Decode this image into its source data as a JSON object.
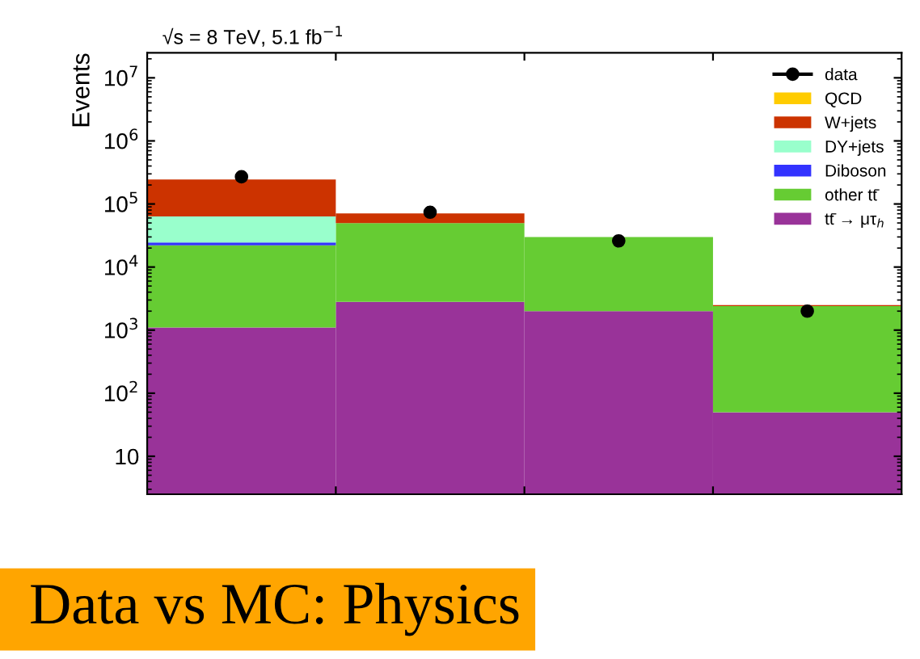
{
  "chart_data": {
    "type": "bar",
    "stacked": true,
    "title": "Data vs MC: Physics",
    "subtitle": "√s = 8 TeV, 5.1 fb$^{−1}$",
    "ylabel": "Events",
    "categories": [
      null,
      null,
      null,
      null
    ],
    "series": [
      {
        "name": "tt̄ → μτ$_{h}$",
        "color": "#993399",
        "values": [
          1100,
          2800,
          2000,
          50
        ]
      },
      {
        "name": "other tt̄",
        "color": "#66cc33",
        "values": [
          21000,
          47000,
          28000,
          2350
        ]
      },
      {
        "name": "Diboson",
        "color": "#3333ff",
        "values": [
          2500,
          null,
          null,
          null
        ]
      },
      {
        "name": "DY+jets",
        "color": "#99ffcc",
        "values": [
          39000,
          null,
          null,
          null
        ]
      },
      {
        "name": "W+jets",
        "color": "#cc3300",
        "values": [
          180000,
          21000,
          null,
          100
        ]
      },
      {
        "name": "QCD",
        "color": "#ffcc00",
        "values": [
          null,
          null,
          null,
          null
        ]
      },
      {
        "name": "data",
        "type": "scatter",
        "color": "#000000",
        "marker": "circle",
        "values": [
          270000,
          74000,
          26000,
          2000
        ]
      }
    ],
    "log": "y",
    "ylim": [
      2.5,
      25000000
    ],
    "yticks": [
      {
        "value": 10,
        "label": "10"
      },
      {
        "value": 100,
        "label": "10$^{2}$"
      },
      {
        "value": 1000,
        "label": "10$^{3}$"
      },
      {
        "value": 10000,
        "label": "10$^{4}$"
      },
      {
        "value": 100000,
        "label": "10$^{5}$"
      },
      {
        "value": 1000000,
        "label": "10$^{6}$"
      },
      {
        "value": 10000000,
        "label": "10$^{7}$"
      }
    ],
    "tick_labels": "y",
    "grid": false,
    "legend": "top right"
  }
}
